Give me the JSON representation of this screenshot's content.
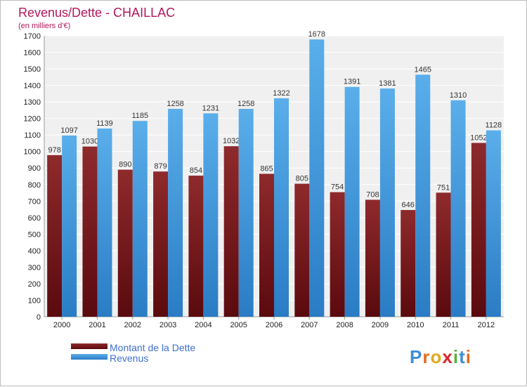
{
  "chart_data": {
    "type": "bar",
    "title": "Revenus/Dette - CHAILLAC",
    "subtitle": "(en milliers d'€)",
    "categories": [
      "2000",
      "2001",
      "2002",
      "2003",
      "2004",
      "2005",
      "2006",
      "2007",
      "2008",
      "2009",
      "2010",
      "2011",
      "2012"
    ],
    "series": [
      {
        "name": "Montant de la Dette",
        "values": [
          978,
          1030,
          890,
          879,
          854,
          1032,
          865,
          805,
          754,
          708,
          646,
          751,
          1052
        ],
        "color": "#7a1518"
      },
      {
        "name": "Revenus",
        "values": [
          1097,
          1139,
          1185,
          1258,
          1231,
          1258,
          1322,
          1678,
          1391,
          1381,
          1465,
          1310,
          1128
        ],
        "color": "#3d97e0"
      }
    ],
    "ylim": [
      0,
      1700
    ],
    "yticks": [
      0,
      100,
      200,
      300,
      400,
      500,
      600,
      700,
      800,
      900,
      1000,
      1100,
      1200,
      1300,
      1400,
      1500,
      1600,
      1700
    ],
    "grid": true,
    "legend_position": "bottom-left"
  },
  "logo": {
    "text": "Proxiti",
    "letters": [
      "P",
      "r",
      "o",
      "x",
      "i",
      "t",
      "i"
    ]
  },
  "colors": {
    "background": "#ffffff",
    "plot_area": "#f0f0f0",
    "grid": "#ffffff",
    "title": "#b3175a",
    "legend_text": "#3f6fd0"
  }
}
